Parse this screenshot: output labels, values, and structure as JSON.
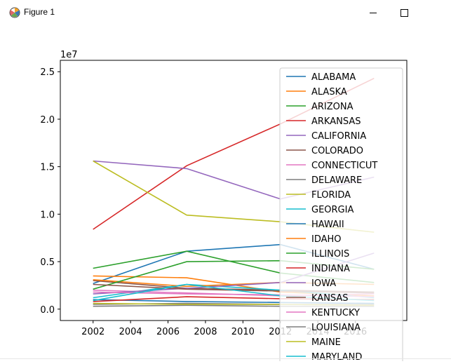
{
  "window": {
    "title": "Figure 1",
    "icon": "matplotlib-figure-icon",
    "buttons": {
      "minimize": "minimize-icon",
      "maximize": "maximize-icon"
    }
  },
  "chart_data": {
    "type": "line",
    "title": "",
    "xlabel": "",
    "ylabel": "",
    "offset_label": "1e7",
    "x": [
      2002,
      2007,
      2012,
      2017
    ],
    "xticks": [
      2002,
      2004,
      2006,
      2008,
      2010,
      2012,
      2014,
      2016
    ],
    "xtick_labels": [
      "2002",
      "2004",
      "2006",
      "2008",
      "2010",
      "2012",
      "2014",
      "2016"
    ],
    "yticks": [
      0,
      0.5,
      1.0,
      1.5,
      2.0,
      2.5
    ],
    "ytick_labels": [
      "0.0",
      "0.5",
      "1.0",
      "1.5",
      "2.0",
      "2.5"
    ],
    "xlim": [
      2000.25,
      2018.75
    ],
    "ylim": [
      -0.12,
      2.62
    ],
    "y_scale_note": "values in units of 1e7",
    "grid": false,
    "legend_placement": "upper right",
    "series": [
      {
        "name": "ALABAMA",
        "color": "#1f77b4",
        "values": [
          0.27,
          0.61,
          0.68,
          0.42
        ]
      },
      {
        "name": "ALASKA",
        "color": "#ff7f0e",
        "values": [
          0.35,
          0.33,
          0.18,
          0.14
        ]
      },
      {
        "name": "ARIZONA",
        "color": "#2ca02c",
        "values": [
          0.43,
          0.61,
          0.38,
          0.28
        ]
      },
      {
        "name": "ARKANSAS",
        "color": "#d62728",
        "values": [
          0.84,
          1.51,
          1.95,
          2.43
        ]
      },
      {
        "name": "CALIFORNIA",
        "color": "#9467bd",
        "values": [
          1.56,
          1.48,
          1.16,
          1.39
        ]
      },
      {
        "name": "COLORADO",
        "color": "#8c564b",
        "values": [
          0.3,
          0.22,
          0.2,
          0.18
        ]
      },
      {
        "name": "CONNECTICUT",
        "color": "#e377c2",
        "values": [
          0.2,
          0.17,
          0.14,
          0.16
        ]
      },
      {
        "name": "DELAWARE",
        "color": "#7f7f7f",
        "values": [
          0.05,
          0.06,
          0.05,
          0.05
        ]
      },
      {
        "name": "FLORIDA",
        "color": "#bcbd22",
        "values": [
          1.56,
          0.99,
          0.92,
          0.81
        ]
      },
      {
        "name": "GEORGIA",
        "color": "#17becf",
        "values": [
          0.12,
          0.26,
          0.2,
          0.12
        ]
      },
      {
        "name": "HAWAII",
        "color": "#1f77b4",
        "values": [
          0.1,
          0.08,
          0.07,
          0.06
        ]
      },
      {
        "name": "IDAHO",
        "color": "#ff7f0e",
        "values": [
          0.31,
          0.24,
          0.28,
          0.26
        ]
      },
      {
        "name": "ILLINOIS",
        "color": "#2ca02c",
        "values": [
          0.21,
          0.5,
          0.51,
          0.42
        ]
      },
      {
        "name": "INDIANA",
        "color": "#d62728",
        "values": [
          0.08,
          0.13,
          0.11,
          0.1
        ]
      },
      {
        "name": "IOWA",
        "color": "#9467bd",
        "values": [
          0.16,
          0.22,
          0.28,
          0.59
        ]
      },
      {
        "name": "KANSAS",
        "color": "#8c564b",
        "values": [
          0.26,
          0.21,
          0.19,
          0.17
        ]
      },
      {
        "name": "KENTUCKY",
        "color": "#e377c2",
        "values": [
          0.18,
          0.16,
          0.15,
          0.13
        ]
      },
      {
        "name": "LOUISIANA",
        "color": "#7f7f7f",
        "values": [
          0.03,
          0.04,
          0.03,
          0.03
        ]
      },
      {
        "name": "MAINE",
        "color": "#bcbd22",
        "values": [
          0.06,
          0.05,
          0.05,
          0.04
        ]
      },
      {
        "name": "MARYLAND",
        "color": "#17becf",
        "values": [
          0.09,
          0.26,
          0.14,
          0.09
        ]
      }
    ]
  }
}
